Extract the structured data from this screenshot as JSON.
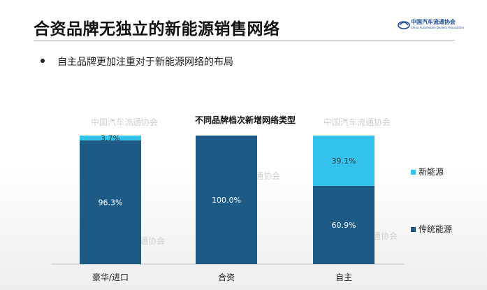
{
  "slide": {
    "title": "合资品牌无独立的新能源销售网络",
    "bullet": "自主品牌更加注重对于新能源网络的布局"
  },
  "logo": {
    "cn": "中国汽车流通协会",
    "en": "China Automobile Dealers Association"
  },
  "watermarks": [
    "中国汽车流通协会",
    "中国汽车流通协会",
    "通协会",
    "通协会",
    "通协会"
  ],
  "colors": {
    "traditional": "#1d5a86",
    "new_energy": "#33c3ec"
  },
  "chart_data": {
    "type": "bar",
    "stacked": true,
    "title": "不同品牌档次新增网络类型",
    "categories": [
      "豪华/进口",
      "合资",
      "自主"
    ],
    "series": [
      {
        "name": "传统能源",
        "values": [
          96.3,
          100.0,
          60.9
        ],
        "labels": [
          "96.3%",
          "100.0%",
          "60.9%"
        ],
        "color": "#1d5a86"
      },
      {
        "name": "新能源",
        "values": [
          3.7,
          0,
          39.1
        ],
        "labels": [
          "3.7%",
          "",
          "39.1%"
        ],
        "color": "#33c3ec"
      }
    ],
    "legend": [
      "新能源",
      "传统能源"
    ],
    "legend_position": "right",
    "ylim": [
      0,
      100
    ],
    "xlabel": "",
    "ylabel": "",
    "grid": false
  }
}
